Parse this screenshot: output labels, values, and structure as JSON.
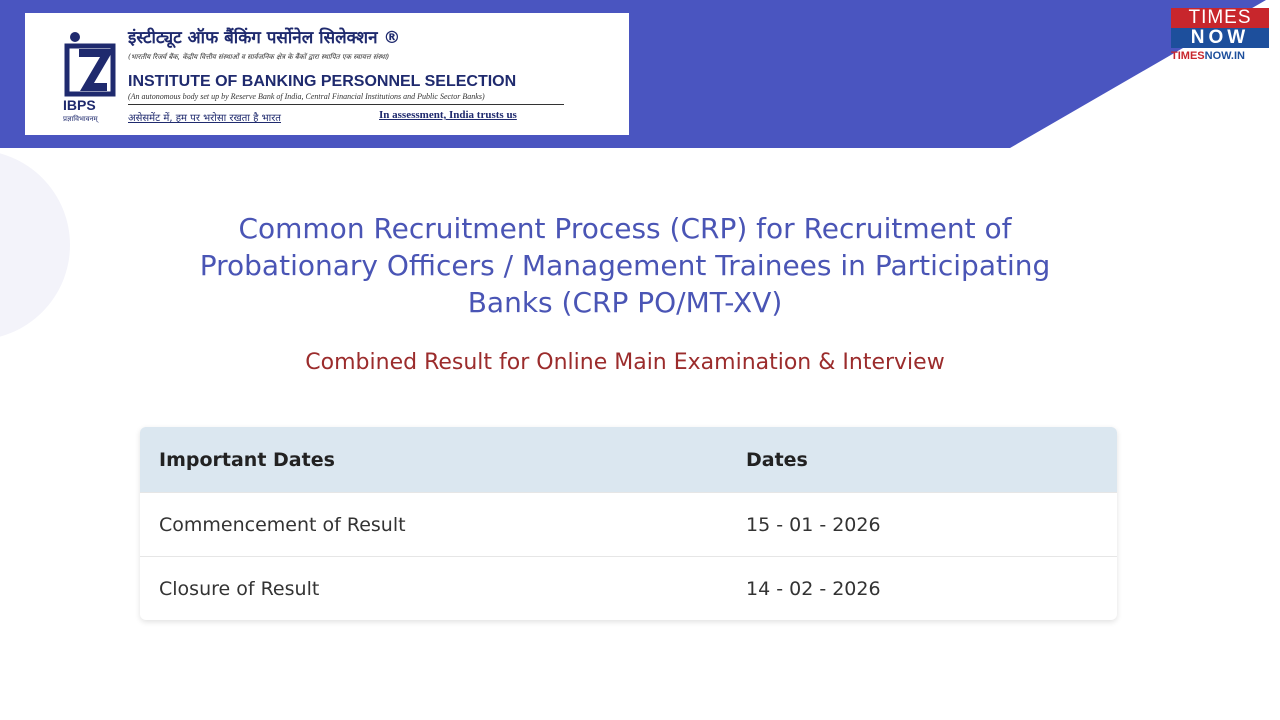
{
  "colors": {
    "band": "#4a55c0",
    "title": "#4a55b5",
    "subtitle": "#9b2c2c",
    "table_header": "#dbe7f0"
  },
  "logo": {
    "hindi_name": "इंस्टीट्यूट ऑफ बैंकिंग पर्सोनेल सिलेक्शन ®",
    "hindi_sub": "(भारतीय रिजर्व बैंक, केंद्रीय वित्तीय संस्थाओं व सार्वजनिक क्षेत्र के बैंकों द्वारा स्थापित एक स्वायत्त संस्था)",
    "english_name": "INSTITUTE OF BANKING PERSONNEL SELECTION",
    "english_sub": "(An autonomous body set up by Reserve Bank of India, Central Financial Institutions and Public Sector Banks)",
    "tagline_hindi": "असेसमेंट में, हम पर भरोसा रखता है भारत",
    "tagline_english": "In assessment, India trusts us",
    "abbr": "IBPS",
    "motto": "प्रज्ञाविभावनम्"
  },
  "watermark": {
    "line1": "TIMES",
    "line2": "NOW",
    "url_a": "TIMES",
    "url_b": "NOW.IN"
  },
  "title": "Common Recruitment Process (CRP) for Recruitment of Probationary Officers / Management Trainees in Participating Banks (CRP PO/MT-XV)",
  "subtitle": "Combined Result for Online Main Examination & Interview",
  "table": {
    "headers": [
      "Important Dates",
      "Dates"
    ],
    "rows": [
      [
        "Commencement of Result",
        "15 - 01 - 2026"
      ],
      [
        "Closure of Result",
        "14 - 02 - 2026"
      ]
    ]
  }
}
